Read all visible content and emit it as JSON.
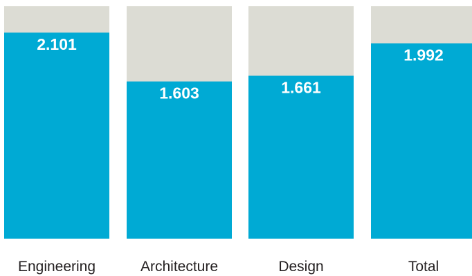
{
  "chart_data": {
    "type": "bar",
    "categories": [
      "Engineering",
      "Architecture",
      "Design",
      "Total"
    ],
    "values": [
      2.101,
      1.603,
      1.661,
      1.992
    ],
    "value_labels": [
      "2.101",
      "1.603",
      "1.661",
      "1.992"
    ],
    "ylim": [
      0,
      2.37
    ],
    "grid": false,
    "legend": "none",
    "title": "",
    "xlabel": "",
    "ylabel": ""
  },
  "colors": {
    "bar_fill": "#00aad4",
    "bar_background": "#dcdcd4",
    "value_label": "#ffffff",
    "category_label": "#231f20"
  }
}
